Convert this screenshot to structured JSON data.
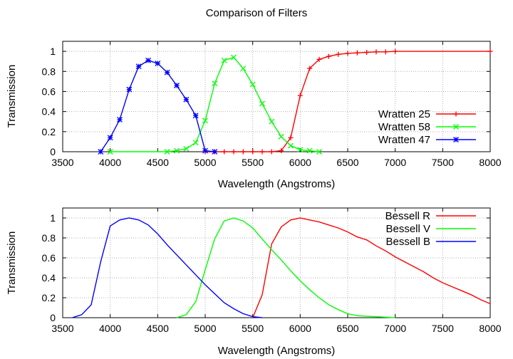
{
  "chart_data": [
    {
      "type": "line",
      "title": "Comparison of Filters",
      "xlabel": "Wavelength (Angstroms)",
      "ylabel": "Transmission",
      "xlim": [
        3500,
        8000
      ],
      "ylim": [
        0,
        1.1
      ],
      "xticks": [
        3500,
        4000,
        4500,
        5000,
        5500,
        6000,
        6500,
        7000,
        7500,
        8000
      ],
      "yticks": [
        0,
        0.2,
        0.4,
        0.6,
        0.8,
        1
      ],
      "grid": true,
      "legend_position": "bottom-right",
      "series": [
        {
          "name": "Wratten 25",
          "color": "#ff0000",
          "marker": "plus",
          "x": [
            5000,
            5100,
            5200,
            5300,
            5400,
            5500,
            5600,
            5700,
            5800,
            5900,
            6000,
            6100,
            6200,
            6300,
            6400,
            6500,
            6600,
            6700,
            6800,
            6900,
            7000,
            8000
          ],
          "y": [
            0,
            0,
            0,
            0,
            0,
            0,
            0,
            0,
            0.01,
            0.14,
            0.56,
            0.83,
            0.92,
            0.95,
            0.97,
            0.98,
            0.985,
            0.99,
            0.995,
            0.995,
            1.0,
            1.0
          ]
        },
        {
          "name": "Wratten 58",
          "color": "#00ff00",
          "marker": "cross",
          "x": [
            4000,
            4600,
            4700,
            4800,
            4900,
            5000,
            5100,
            5200,
            5300,
            5400,
            5500,
            5600,
            5700,
            5800,
            5900,
            6000,
            6100,
            6200
          ],
          "y": [
            0,
            0,
            0.01,
            0.03,
            0.09,
            0.31,
            0.68,
            0.91,
            0.94,
            0.83,
            0.67,
            0.48,
            0.3,
            0.15,
            0.06,
            0.02,
            0.01,
            0
          ]
        },
        {
          "name": "Wratten 47",
          "color": "#0000ff",
          "marker": "star",
          "x": [
            3900,
            4000,
            4100,
            4200,
            4300,
            4400,
            4500,
            4600,
            4700,
            4800,
            4900,
            5000,
            5100
          ],
          "y": [
            0,
            0.14,
            0.32,
            0.62,
            0.85,
            0.91,
            0.88,
            0.79,
            0.66,
            0.52,
            0.36,
            0.01,
            0
          ]
        }
      ]
    },
    {
      "type": "line",
      "title": "",
      "xlabel": "Wavelength (Angstroms)",
      "ylabel": "Transmission",
      "xlim": [
        3500,
        8000
      ],
      "ylim": [
        0,
        1.1
      ],
      "xticks": [
        3500,
        4000,
        4500,
        5000,
        5500,
        6000,
        6500,
        7000,
        7500,
        8000
      ],
      "yticks": [
        0,
        0.2,
        0.4,
        0.6,
        0.8,
        1
      ],
      "grid": true,
      "legend_position": "top-right",
      "series": [
        {
          "name": "Bessell R",
          "color": "#ff0000",
          "marker": "none",
          "x": [
            5500,
            5600,
            5700,
            5800,
            5900,
            6000,
            6100,
            6200,
            6300,
            6400,
            6500,
            6600,
            6700,
            6800,
            6900,
            7000,
            7100,
            7200,
            7300,
            7400,
            7500,
            7600,
            7700,
            7800,
            7900,
            8000
          ],
          "y": [
            0,
            0.23,
            0.74,
            0.91,
            0.98,
            1.0,
            0.98,
            0.96,
            0.93,
            0.9,
            0.86,
            0.81,
            0.78,
            0.72,
            0.67,
            0.61,
            0.56,
            0.51,
            0.46,
            0.4,
            0.35,
            0.31,
            0.27,
            0.23,
            0.18,
            0.14
          ]
        },
        {
          "name": "Bessell V",
          "color": "#00ff00",
          "marker": "none",
          "x": [
            4700,
            4800,
            4900,
            5000,
            5100,
            5200,
            5300,
            5400,
            5500,
            5600,
            5700,
            5800,
            5900,
            6000,
            6100,
            6200,
            6300,
            6400,
            6500,
            6600,
            6700,
            6800,
            6900,
            7000
          ],
          "y": [
            0,
            0.03,
            0.16,
            0.48,
            0.79,
            0.97,
            1.0,
            0.97,
            0.9,
            0.79,
            0.68,
            0.58,
            0.47,
            0.37,
            0.28,
            0.2,
            0.13,
            0.08,
            0.04,
            0.02,
            0.015,
            0.01,
            0.005,
            0
          ]
        },
        {
          "name": "Bessell B",
          "color": "#0000ff",
          "marker": "none",
          "x": [
            3600,
            3700,
            3800,
            3900,
            4000,
            4100,
            4200,
            4300,
            4400,
            4500,
            4600,
            4700,
            4800,
            4900,
            5000,
            5100,
            5200,
            5300,
            5400,
            5500,
            5600
          ],
          "y": [
            0,
            0.03,
            0.13,
            0.56,
            0.92,
            0.98,
            1.0,
            0.98,
            0.93,
            0.84,
            0.73,
            0.63,
            0.53,
            0.43,
            0.33,
            0.24,
            0.15,
            0.09,
            0.04,
            0.01,
            0
          ]
        }
      ]
    }
  ]
}
